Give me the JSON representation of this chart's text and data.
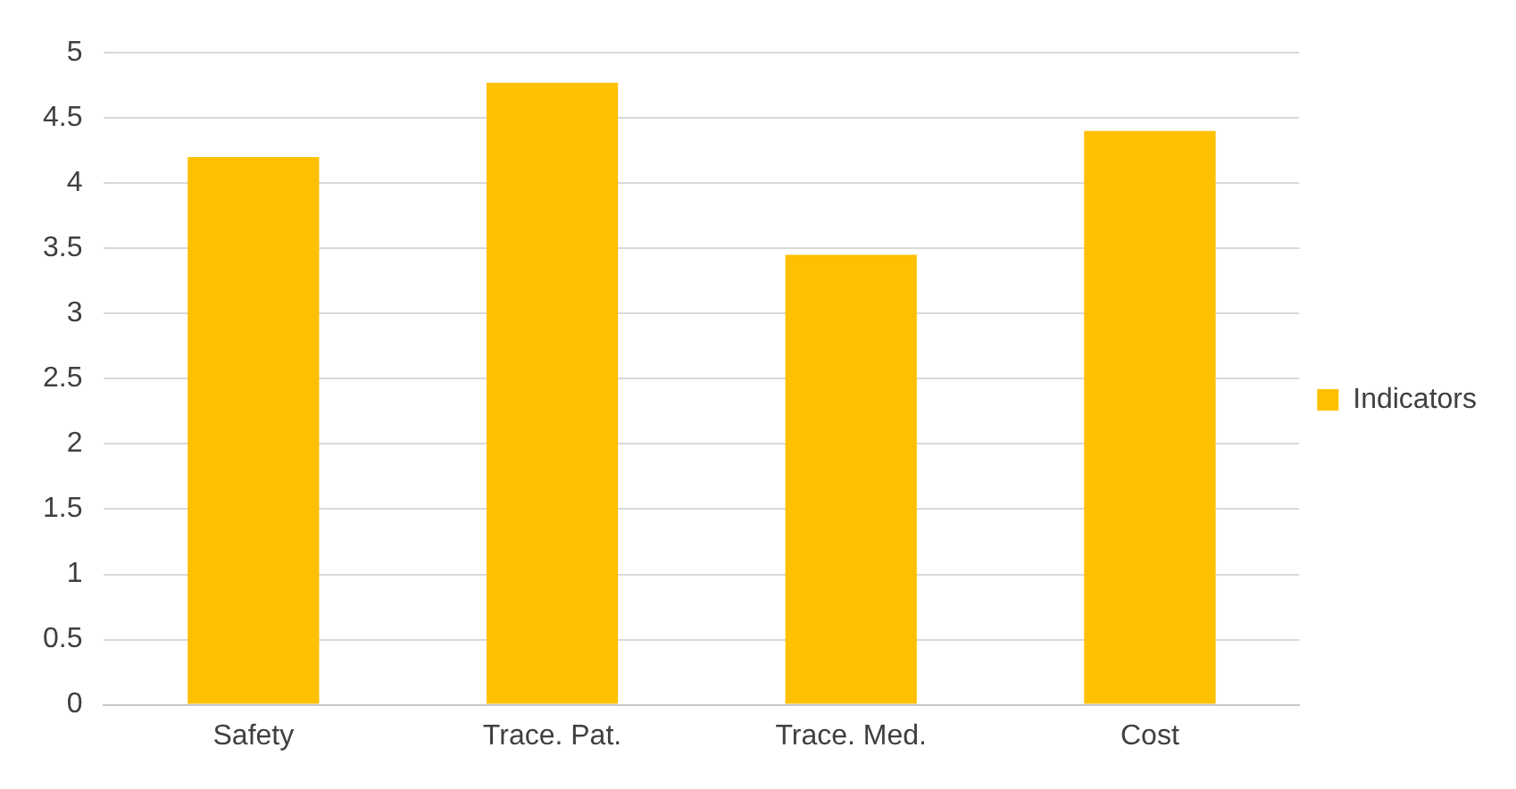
{
  "chart_data": {
    "type": "bar",
    "categories": [
      "Safety",
      "Trace. Pat.",
      "Trace. Med.",
      "Cost"
    ],
    "series": [
      {
        "name": "Indicators",
        "color": "#ffc000",
        "values": [
          4.2,
          4.77,
          3.45,
          4.4
        ]
      }
    ],
    "ylim": [
      0,
      5
    ],
    "yticks": [
      0,
      0.5,
      1,
      1.5,
      2,
      2.5,
      3,
      3.5,
      4,
      4.5,
      5
    ],
    "grid": "y",
    "legend": "right"
  }
}
